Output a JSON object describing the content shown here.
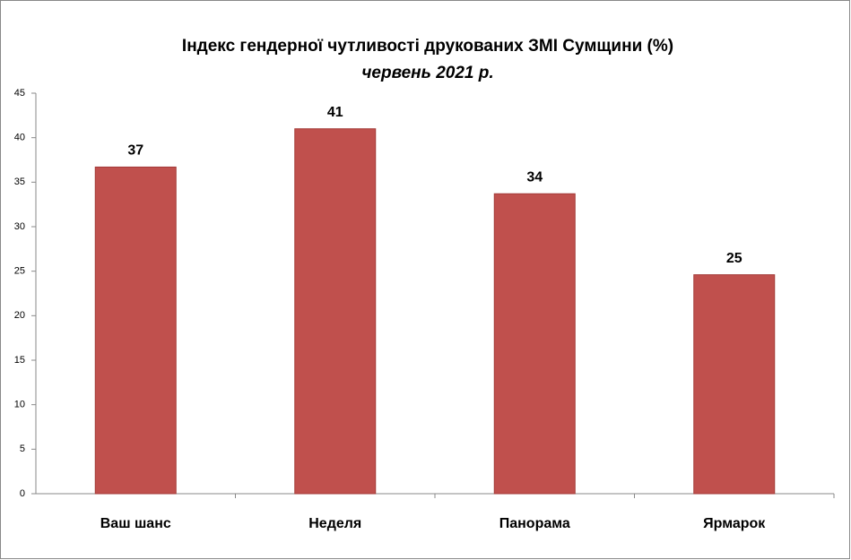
{
  "chart_data": {
    "type": "bar",
    "title": "Індекс гендерної чутливості друкованих ЗМІ Сумщини (%)",
    "subtitle": "червень 2021 р.",
    "categories": [
      "Ваш шанс",
      "Неделя",
      "Панорама",
      "Ярмарок"
    ],
    "values": [
      36.7,
      41,
      33.7,
      24.6
    ],
    "value_labels": [
      "37",
      "41",
      "34",
      "25"
    ],
    "color": "#c0504d",
    "ylim": [
      0,
      45
    ],
    "yticks": [
      0,
      5,
      10,
      15,
      20,
      25,
      30,
      35,
      40,
      45
    ],
    "grid": false
  }
}
